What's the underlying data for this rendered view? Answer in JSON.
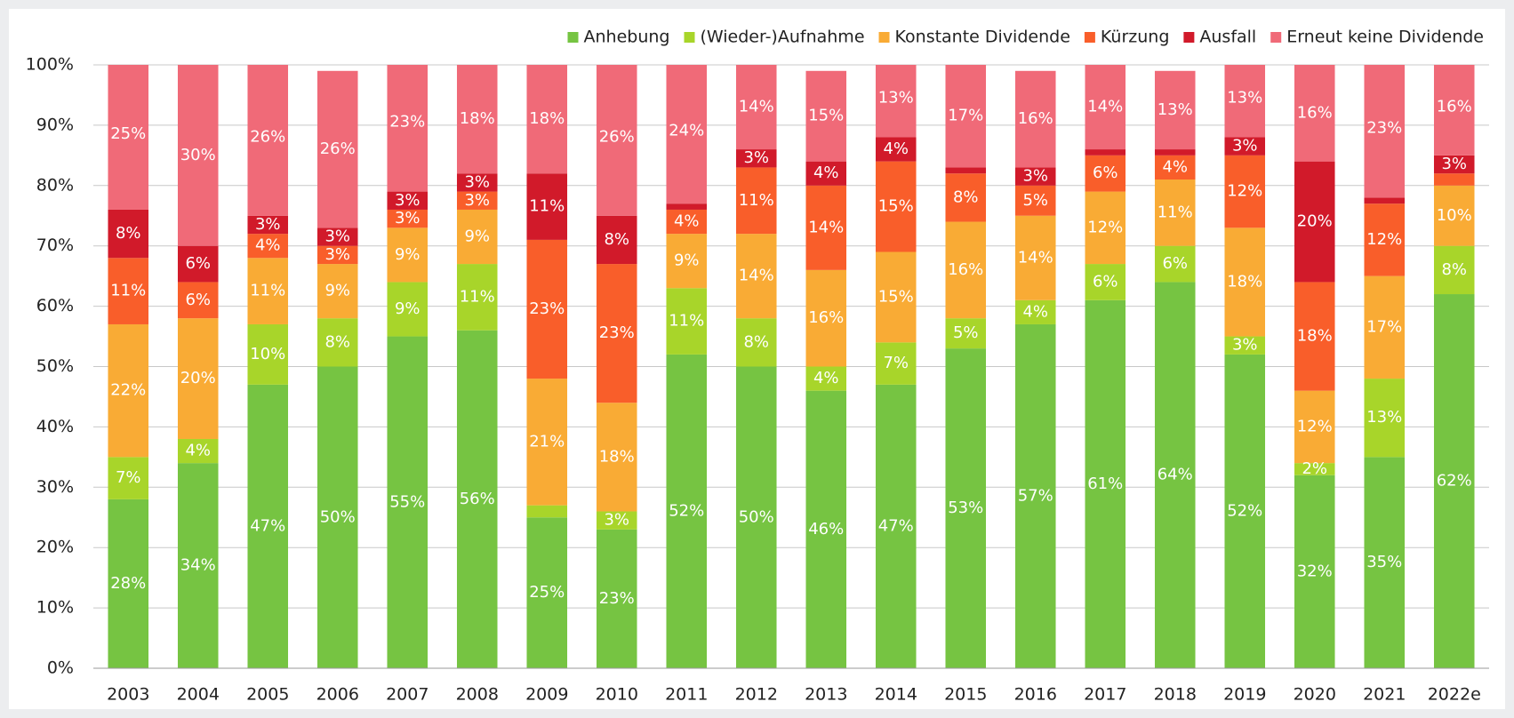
{
  "chart_data": {
    "type": "stacked_bar",
    "categories": [
      "2003",
      "2004",
      "2005",
      "2006",
      "2007",
      "2008",
      "2009",
      "2010",
      "2011",
      "2012",
      "2013",
      "2014",
      "2015",
      "2016",
      "2017",
      "2018",
      "2019",
      "2020",
      "2021",
      "2022e"
    ],
    "series": [
      {
        "name": "Anhebung",
        "color": "#76c442",
        "values": [
          28,
          34,
          47,
          50,
          55,
          56,
          25,
          23,
          52,
          50,
          46,
          47,
          53,
          57,
          61,
          64,
          52,
          32,
          35,
          62
        ],
        "value_labels": [
          "28%",
          "34%",
          "47%",
          "50%",
          "55%",
          "56%",
          "25%",
          "23%",
          "52%",
          "50%",
          "46%",
          "47%",
          "53%",
          "57%",
          "61%",
          "64%",
          "52%",
          "32%",
          "35%",
          "62%"
        ]
      },
      {
        "name": "(Wieder-)Aufnahme",
        "color": "#a8d52a",
        "values": [
          7,
          4,
          10,
          8,
          9,
          11,
          2,
          3,
          11,
          8,
          4,
          7,
          5,
          4,
          6,
          6,
          3,
          2,
          13,
          8
        ],
        "value_labels": [
          "7%",
          "4%",
          "10%",
          "8%",
          "9%",
          "11%",
          null,
          "3%",
          "11%",
          "8%",
          "4%",
          "7%",
          "5%",
          "4%",
          "6%",
          "6%",
          "3%",
          "2%",
          "13%",
          "8%"
        ]
      },
      {
        "name": "Konstante Dividende",
        "color": "#f9ab35",
        "values": [
          22,
          20,
          11,
          9,
          9,
          9,
          21,
          18,
          9,
          14,
          16,
          15,
          16,
          14,
          12,
          11,
          18,
          12,
          17,
          10
        ],
        "value_labels": [
          "22%",
          "20%",
          "11%",
          "9%",
          "9%",
          "9%",
          "21%",
          "18%",
          "9%",
          "14%",
          "16%",
          "15%",
          "16%",
          "14%",
          "12%",
          "11%",
          "18%",
          "12%",
          "17%",
          "10%"
        ]
      },
      {
        "name": "Kürzung",
        "color": "#f95e2a",
        "values": [
          11,
          6,
          4,
          3,
          3,
          3,
          23,
          23,
          4,
          11,
          14,
          15,
          8,
          5,
          6,
          4,
          12,
          18,
          12,
          2
        ],
        "value_labels": [
          "11%",
          "6%",
          "4%",
          "3%",
          "3%",
          "3%",
          "23%",
          "23%",
          "4%",
          "11%",
          "14%",
          "15%",
          "8%",
          "5%",
          "6%",
          "4%",
          "12%",
          "18%",
          "12%",
          null
        ]
      },
      {
        "name": "Ausfall",
        "color": "#d11a2a",
        "values": [
          8,
          6,
          3,
          3,
          3,
          3,
          11,
          8,
          1,
          3,
          4,
          4,
          1,
          3,
          1,
          1,
          3,
          20,
          1,
          3
        ],
        "value_labels": [
          "8%",
          "6%",
          "3%",
          "3%",
          "3%",
          "3%",
          "11%",
          "8%",
          null,
          "3%",
          "4%",
          "4%",
          null,
          "3%",
          null,
          null,
          "3%",
          "20%",
          null,
          "3%"
        ]
      },
      {
        "name": "Erneut keine Dividende",
        "color": "#f06a78",
        "values": [
          25,
          30,
          26,
          26,
          23,
          18,
          18,
          26,
          24,
          14,
          15,
          13,
          17,
          16,
          14,
          13,
          13,
          16,
          23,
          16
        ],
        "value_labels": [
          "25%",
          "30%",
          "26%",
          "26%",
          "23%",
          "18%",
          "18%",
          "26%",
          "24%",
          "14%",
          "15%",
          "13%",
          "17%",
          "16%",
          "14%",
          "13%",
          "13%",
          "16%",
          "23%",
          "16%"
        ]
      }
    ],
    "ylim": [
      0,
      100
    ],
    "yticks": [
      {
        "value": 0,
        "label": "0%"
      },
      {
        "value": 10,
        "label": "10%"
      },
      {
        "value": 20,
        "label": "20%"
      },
      {
        "value": 30,
        "label": "30%"
      },
      {
        "value": 40,
        "label": "40%"
      },
      {
        "value": 50,
        "label": "50%"
      },
      {
        "value": 60,
        "label": "60%"
      },
      {
        "value": 70,
        "label": "70%"
      },
      {
        "value": 80,
        "label": "80%"
      },
      {
        "value": 90,
        "label": "90%"
      },
      {
        "value": 100,
        "label": "100%"
      }
    ],
    "grid": true,
    "legend": "top-right"
  }
}
